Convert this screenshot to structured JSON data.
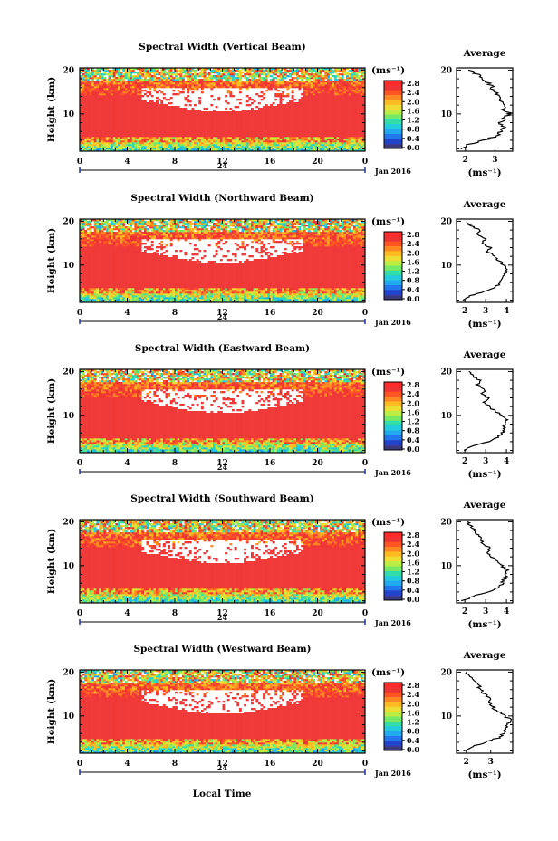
{
  "figure": {
    "xlabel": "Local Time",
    "date_label": "Jan 2016",
    "day_label": "24",
    "colorbar_unit": "(ms⁻¹)",
    "colorbar_ticks": [
      "2.8",
      "2.4",
      "2.0",
      "1.6",
      "1.2",
      "0.8",
      "0.4",
      "0.0"
    ],
    "colorbar_colors": [
      "#e8e8ff",
      "#3a3aa0",
      "#2244cc",
      "#2277ee",
      "#22aaee",
      "#22ccdd",
      "#33ddaa",
      "#77e866",
      "#bbee44",
      "#eedd33",
      "#ffbb22",
      "#ff8822",
      "#ff5522",
      "#ee3333",
      "#ff2a2a"
    ]
  },
  "chart_data": [
    {
      "type": "heatmap",
      "title": "Spectral Width (Vertical Beam)",
      "ylabel": "Height (km)",
      "xlabel": "",
      "x_ticks": [
        "0",
        "4",
        "8",
        "12",
        "16",
        "20",
        "0"
      ],
      "y_ticks": [
        "10",
        "20"
      ],
      "xlim": [
        0,
        24
      ],
      "ylim": [
        1.5,
        20.5
      ],
      "z_range": [
        0.0,
        2.8
      ],
      "z_unit": "ms-1",
      "profile": {
        "title": "Average",
        "x_ticks": [
          "2",
          "3"
        ],
        "xlim": [
          1.7,
          3.6
        ],
        "xlabel": "(ms⁻¹)",
        "heights": [
          2,
          3,
          4,
          5,
          6,
          7,
          8,
          9,
          10,
          11,
          12,
          13,
          14,
          15,
          16,
          17,
          18,
          19,
          20
        ],
        "values": [
          1.9,
          2.1,
          2.6,
          3.1,
          3.2,
          3.3,
          3.2,
          3.3,
          3.5,
          3.3,
          3.4,
          3.1,
          3.2,
          3.0,
          2.9,
          2.8,
          2.6,
          2.4,
          2.1
        ]
      }
    },
    {
      "type": "heatmap",
      "title": "Spectral Width (Northward Beam)",
      "ylabel": "Height (km)",
      "xlabel": "",
      "x_ticks": [
        "0",
        "4",
        "8",
        "12",
        "16",
        "20",
        "0"
      ],
      "y_ticks": [
        "10",
        "20"
      ],
      "xlim": [
        0,
        24
      ],
      "ylim": [
        1.5,
        20.5
      ],
      "z_range": [
        0.0,
        2.8
      ],
      "z_unit": "ms-1",
      "profile": {
        "title": "Average",
        "x_ticks": [
          "2",
          "3",
          "4"
        ],
        "xlim": [
          1.6,
          4.3
        ],
        "xlabel": "(ms⁻¹)",
        "heights": [
          2,
          3,
          4,
          5,
          6,
          7,
          8,
          9,
          10,
          11,
          12,
          13,
          14,
          15,
          16,
          17,
          18,
          19,
          20
        ],
        "values": [
          1.9,
          2.3,
          3.0,
          3.5,
          3.7,
          3.8,
          3.9,
          4.1,
          3.9,
          3.6,
          3.4,
          3.1,
          3.2,
          2.8,
          3.0,
          2.6,
          2.7,
          2.3,
          2.1
        ]
      }
    },
    {
      "type": "heatmap",
      "title": "Spectral Width (Eastward Beam)",
      "ylabel": "Height (km)",
      "xlabel": "",
      "x_ticks": [
        "0",
        "4",
        "8",
        "12",
        "16",
        "20",
        "0"
      ],
      "y_ticks": [
        "10",
        "20"
      ],
      "xlim": [
        0,
        24
      ],
      "ylim": [
        1.5,
        20.5
      ],
      "z_range": [
        0.0,
        2.8
      ],
      "z_unit": "ms-1",
      "profile": {
        "title": "Average",
        "x_ticks": [
          "2",
          "3",
          "4"
        ],
        "xlim": [
          1.6,
          4.3
        ],
        "xlabel": "(ms⁻¹)",
        "heights": [
          2,
          3,
          4,
          5,
          6,
          7,
          8,
          9,
          10,
          11,
          12,
          13,
          14,
          15,
          16,
          17,
          18,
          19,
          20
        ],
        "values": [
          1.9,
          2.4,
          3.1,
          3.6,
          3.8,
          3.9,
          3.9,
          4.0,
          3.8,
          3.4,
          3.2,
          2.9,
          3.1,
          2.8,
          3.0,
          2.6,
          2.7,
          2.4,
          2.2
        ]
      }
    },
    {
      "type": "heatmap",
      "title": "Spectral Width (Southward Beam)",
      "ylabel": "Height (km)",
      "xlabel": "",
      "x_ticks": [
        "0",
        "4",
        "8",
        "12",
        "16",
        "20",
        "0"
      ],
      "y_ticks": [
        "10",
        "20"
      ],
      "xlim": [
        0,
        24
      ],
      "ylim": [
        1.5,
        20.5
      ],
      "z_range": [
        0.0,
        2.8
      ],
      "z_unit": "ms-1",
      "profile": {
        "title": "Average",
        "x_ticks": [
          "2",
          "3",
          "4"
        ],
        "xlim": [
          1.6,
          4.3
        ],
        "xlabel": "(ms⁻¹)",
        "heights": [
          2,
          3,
          4,
          5,
          6,
          7,
          8,
          9,
          10,
          11,
          12,
          13,
          14,
          15,
          16,
          17,
          18,
          19,
          20
        ],
        "values": [
          1.9,
          2.4,
          3.1,
          3.6,
          3.8,
          3.9,
          4.0,
          4.0,
          3.8,
          3.5,
          3.3,
          3.1,
          3.2,
          2.9,
          2.8,
          2.6,
          2.5,
          2.3,
          2.1
        ]
      }
    },
    {
      "type": "heatmap",
      "title": "Spectral Width (Westward Beam)",
      "ylabel": "Height (km)",
      "xlabel": "Local Time",
      "x_ticks": [
        "0",
        "4",
        "8",
        "12",
        "16",
        "20",
        "0"
      ],
      "y_ticks": [
        "10",
        "20"
      ],
      "xlim": [
        0,
        24
      ],
      "ylim": [
        1.5,
        20.5
      ],
      "z_range": [
        0.0,
        2.8
      ],
      "z_unit": "ms-1",
      "profile": {
        "title": "Average",
        "x_ticks": [
          "2",
          "3"
        ],
        "xlim": [
          1.6,
          3.9
        ],
        "xlabel": "(ms⁻¹)",
        "heights": [
          2,
          3,
          4,
          5,
          6,
          7,
          8,
          9,
          10,
          11,
          12,
          13,
          14,
          15,
          16,
          17,
          18,
          19,
          20
        ],
        "values": [
          1.9,
          2.2,
          2.8,
          3.3,
          3.5,
          3.6,
          3.7,
          3.8,
          3.6,
          3.3,
          3.1,
          2.9,
          3.0,
          2.7,
          2.6,
          2.5,
          2.4,
          2.2,
          2.0
        ]
      }
    }
  ]
}
